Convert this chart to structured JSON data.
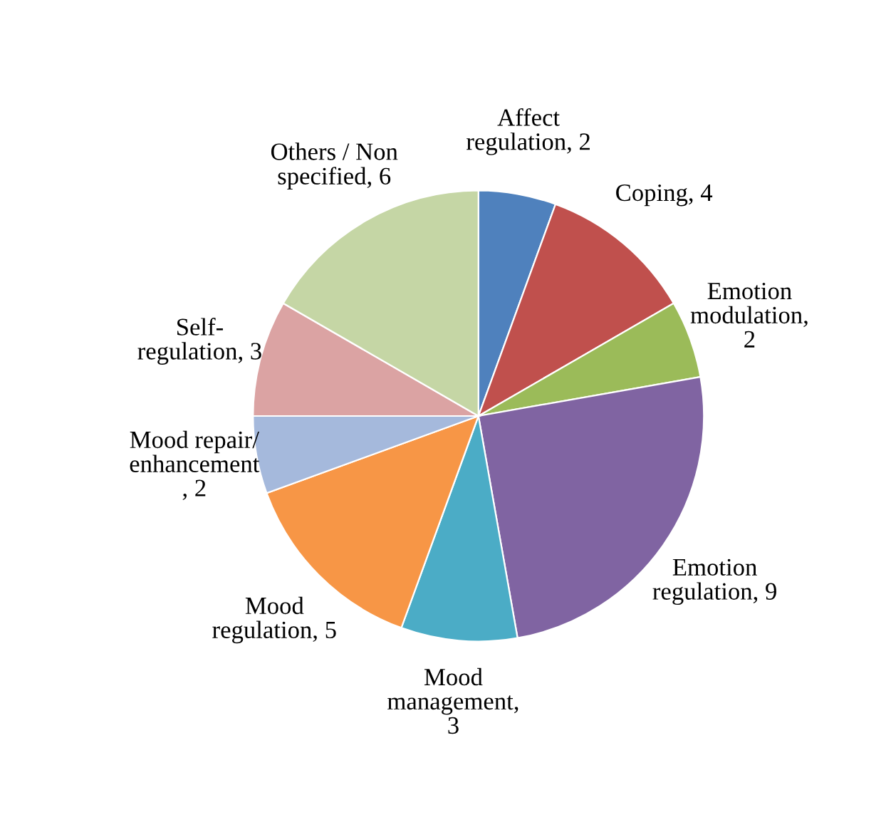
{
  "chart_data": {
    "type": "pie",
    "categories": [
      "Affect\nregulation, 2",
      "Coping, 4",
      "Emotion\nmodulation,\n2",
      "Emotion\nregulation, 9",
      "Mood\nmanagement,\n3",
      "Mood\nregulation, 5",
      "Mood repair/\nenhancement\n, 2",
      "Self-\nregulation, 3",
      "Others / Non\nspecified, 6"
    ],
    "values": [
      2,
      4,
      2,
      9,
      3,
      5,
      2,
      3,
      6
    ],
    "colors": [
      "#4f81bd",
      "#c0504d",
      "#9bbb59",
      "#8064a2",
      "#4bacc6",
      "#f79646",
      "#a5b9dc",
      "#dba3a3",
      "#c5d6a5"
    ]
  }
}
